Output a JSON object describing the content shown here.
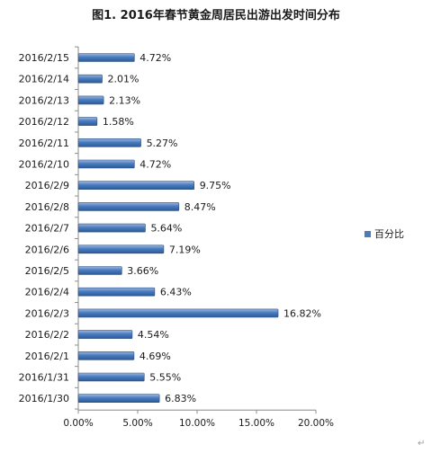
{
  "colors": {
    "bar_top": "#9cb8de",
    "bar_mid": "#4a7bbf",
    "bar_bottom": "#2c5a96",
    "bar_stroke": "#2a4f82",
    "legend_marker": "#4a7bbf",
    "axis": "#8c8c8c",
    "text": "#1a1a1a",
    "mark": "#9a9a9a"
  },
  "chart_data": {
    "type": "bar",
    "orientation": "horizontal",
    "title": "图1. 2016年春节黄金周居民出游出发时间分布",
    "categories": [
      "2016/2/15",
      "2016/2/14",
      "2016/2/13",
      "2016/2/12",
      "2016/2/11",
      "2016/2/10",
      "2016/2/9",
      "2016/2/8",
      "2016/2/7",
      "2016/2/6",
      "2016/2/5",
      "2016/2/4",
      "2016/2/3",
      "2016/2/2",
      "2016/2/1",
      "2016/1/31",
      "2016/1/30"
    ],
    "series": [
      {
        "name": "百分比",
        "values": [
          4.72,
          2.01,
          2.13,
          1.58,
          5.27,
          4.72,
          9.75,
          8.47,
          5.64,
          7.19,
          3.66,
          6.43,
          16.82,
          4.54,
          4.69,
          5.55,
          6.83
        ],
        "labels": [
          "4.72%",
          "2.01%",
          "2.13%",
          "1.58%",
          "5.27%",
          "4.72%",
          "9.75%",
          "8.47%",
          "5.64%",
          "7.19%",
          "3.66%",
          "6.43%",
          "16.82%",
          "4.54%",
          "4.69%",
          "5.55%",
          "6.83%"
        ]
      }
    ],
    "x_ticks": [
      "0.00%",
      "5.00%",
      "10.00%",
      "15.00%",
      "20.00%"
    ],
    "xlim": [
      0,
      20
    ],
    "grid": false,
    "legend_position": "right"
  }
}
